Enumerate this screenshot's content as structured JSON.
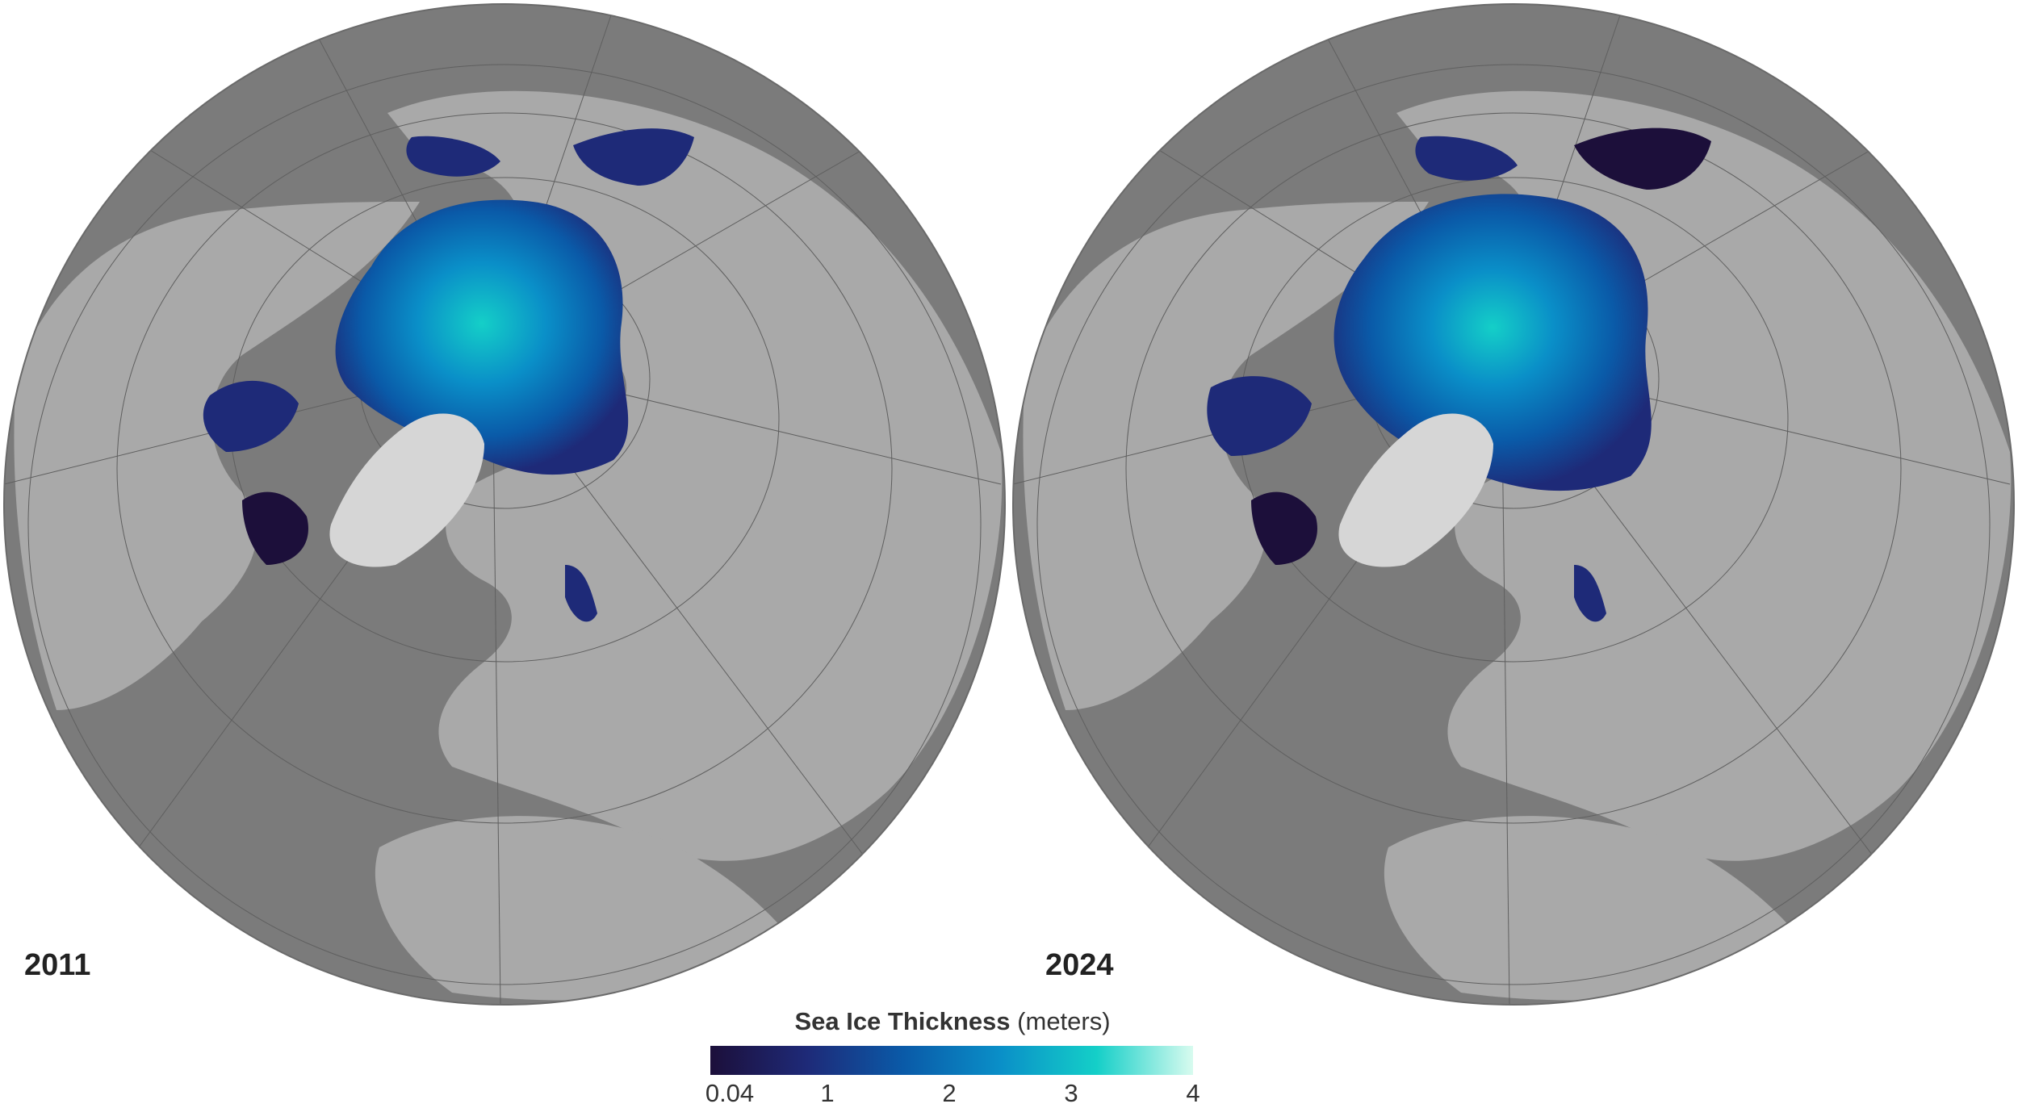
{
  "panels": [
    {
      "year": "2011"
    },
    {
      "year": "2024"
    }
  ],
  "legend": {
    "title_bold": "Sea Ice Thickness",
    "title_unit": "(meters)",
    "ticks": [
      "0.04",
      "1",
      "2",
      "3",
      "4"
    ],
    "range": [
      0.04,
      4
    ],
    "colors": [
      "#1c0f3a",
      "#1e2a78",
      "#0a5aa8",
      "#0a8fc8",
      "#14cfc8",
      "#d8fbef"
    ]
  },
  "map_colors": {
    "ocean": "#7b7b7b",
    "land": "#a9a9a9",
    "greenland": "#d6d6d6",
    "graticule": "#5f5f5f"
  }
}
